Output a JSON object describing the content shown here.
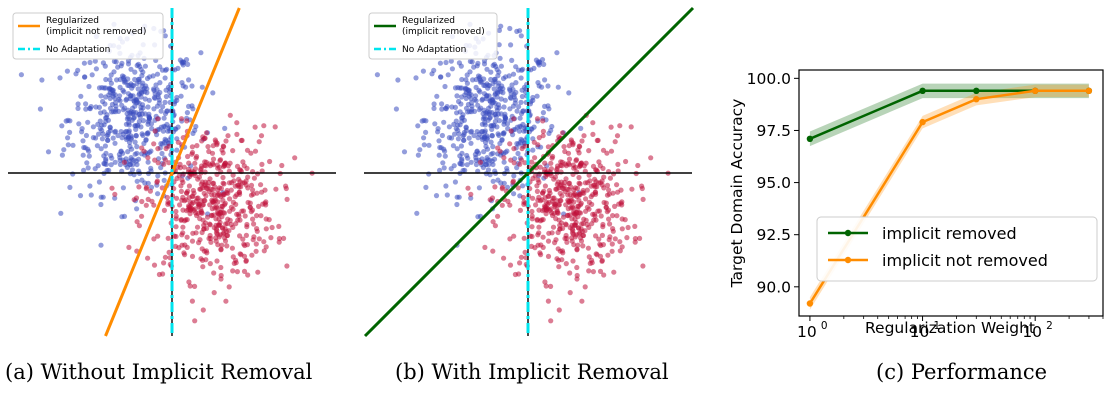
{
  "chart_data": [
    {
      "type": "scatter",
      "caption": "(a) Without Implicit Removal",
      "legend": {
        "placement": "top-left",
        "entries": [
          {
            "label_line1": "Regularized",
            "label_line2": "(implicit not removed)",
            "color": "#ff8c00",
            "style": "solid"
          },
          {
            "label_line1": "No Adaptation",
            "label_line2": "",
            "color": "#00e5ee",
            "style": "dashdot"
          }
        ]
      },
      "clusters": [
        {
          "color": "#3b4cc0",
          "center": [
            -0.75,
            1.1
          ],
          "count": 520
        },
        {
          "color": "#c0103a",
          "center": [
            0.75,
            -0.6
          ],
          "count": 520
        }
      ],
      "lines": [
        {
          "name": "Regularized",
          "color": "#ff8c00",
          "slope": 2.45
        },
        {
          "name": "No Adaptation",
          "color": "#00e5ee",
          "slope": "vertical"
        }
      ],
      "axes_visible": false
    },
    {
      "type": "scatter",
      "caption": "(b) With Implicit Removal",
      "legend": {
        "placement": "top-left",
        "entries": [
          {
            "label_line1": "Regularized",
            "label_line2": "(implicit removed)",
            "color": "#006400",
            "style": "solid"
          },
          {
            "label_line1": "No Adaptation",
            "label_line2": "",
            "color": "#00e5ee",
            "style": "dashdot"
          }
        ]
      },
      "clusters": [
        {
          "color": "#3b4cc0",
          "center": [
            -0.75,
            1.1
          ],
          "count": 520
        },
        {
          "color": "#c0103a",
          "center": [
            0.75,
            -0.6
          ],
          "count": 520
        }
      ],
      "lines": [
        {
          "name": "Regularized",
          "color": "#006400",
          "slope": 1.0
        },
        {
          "name": "No Adaptation",
          "color": "#00e5ee",
          "slope": "vertical"
        }
      ],
      "axes_visible": false
    },
    {
      "type": "line",
      "caption": "(c) Performance",
      "xlabel": "Regularization Weight",
      "ylabel": "Target Domain Accuracy",
      "xscale": "log",
      "xlim": [
        0.8,
        400
      ],
      "ylim": [
        88.6,
        100.4
      ],
      "xticks": [
        {
          "value": 1,
          "base": "10",
          "exp": "0"
        },
        {
          "value": 10,
          "base": "10",
          "exp": "1"
        },
        {
          "value": 100,
          "base": "10",
          "exp": "2"
        }
      ],
      "yticks": [
        90.0,
        92.5,
        95.0,
        97.5,
        100.0
      ],
      "ytick_labels": [
        "90.0",
        "92.5",
        "95.0",
        "97.5",
        "100.0"
      ],
      "legend_placement": "lower right",
      "series": [
        {
          "name": "implicit removed",
          "color": "#006400",
          "x": [
            1,
            10,
            30,
            100,
            300
          ],
          "y": [
            97.1,
            99.4,
            99.4,
            99.4,
            99.4
          ],
          "band": 0.35
        },
        {
          "name": "implicit not removed",
          "color": "#ff8c00",
          "x": [
            1,
            10,
            30,
            100,
            300
          ],
          "y": [
            89.2,
            97.9,
            99.0,
            99.4,
            99.4
          ],
          "band": 0.3
        }
      ]
    }
  ]
}
